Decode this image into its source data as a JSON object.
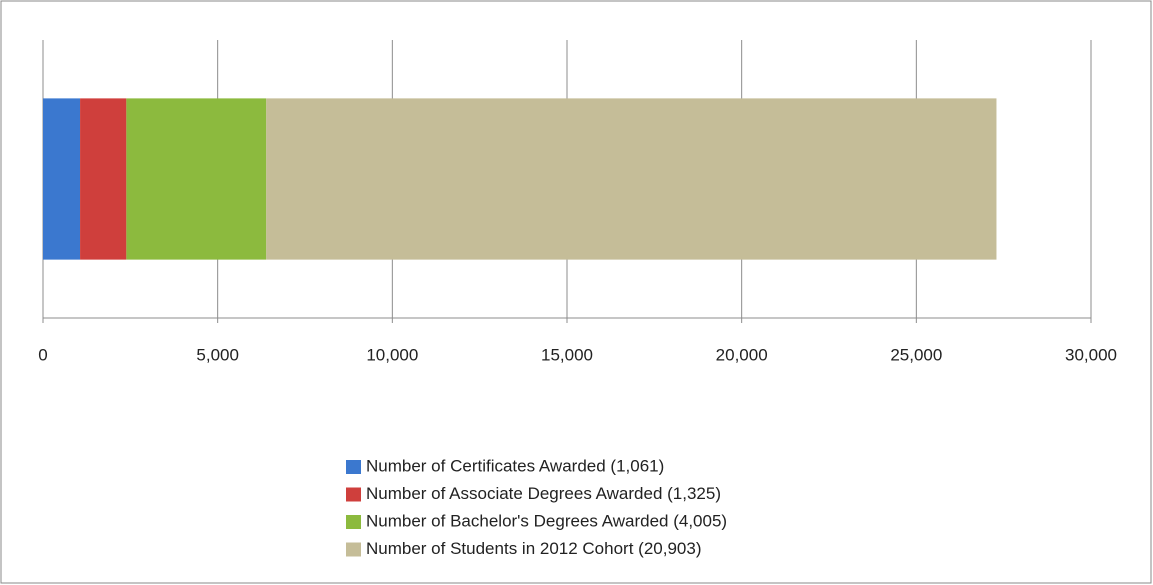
{
  "chart_data": {
    "type": "stacked-barh",
    "categories": [
      null
    ],
    "series": [
      {
        "name": "Number of Certificates Awarded (1,061)",
        "color": "#3b78cf",
        "values": [
          1061
        ]
      },
      {
        "name": "Number of Associate Degrees Awarded (1,325)",
        "color": "#cf3f3c",
        "values": [
          1325
        ]
      },
      {
        "name": "Number of Bachelor's Degrees Awarded (4,005)",
        "color": "#8cba3e",
        "values": [
          4005
        ]
      },
      {
        "name": "Number of Students in 2012 Cohort (20,903)",
        "color": "#c5bd98",
        "values": [
          20903
        ]
      }
    ],
    "xlim": [
      0,
      30000
    ],
    "xticks": [
      0,
      {
        "value": 5000,
        "label": "5,000"
      },
      {
        "value": 10000,
        "label": "10,000"
      },
      {
        "value": 15000,
        "label": "15,000"
      },
      {
        "value": 20000,
        "label": "20,000"
      },
      {
        "value": 25000,
        "label": "25,000"
      },
      {
        "value": 30000,
        "label": "30,000"
      }
    ],
    "grid": true,
    "legend": "bottom"
  }
}
